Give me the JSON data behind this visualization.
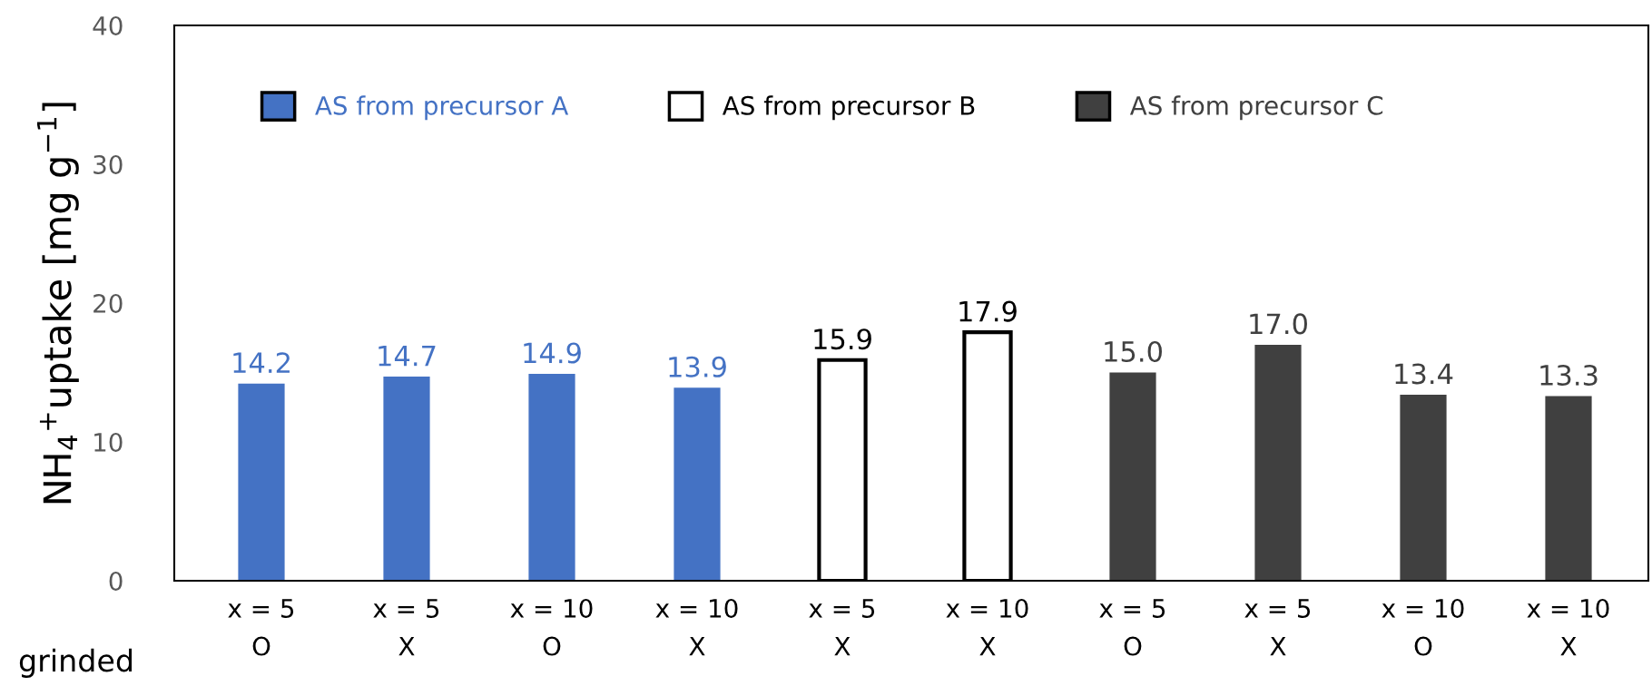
{
  "chart_data": {
    "type": "bar",
    "ylabel": "NH$_{4}$$^{+}$uptake [mg g$^{−1}$]",
    "categories": [
      "x = 5\nO",
      "x = 5\nX",
      "x = 10\nO",
      "x = 10\nX",
      "x = 5\nX",
      "x = 10\nX",
      "x = 5\nO",
      "x = 5\nX",
      "x = 10\nO",
      "x = 10\nX"
    ],
    "series": [
      {
        "name": "AS from precursor A",
        "color": "#4472c4",
        "values": [
          14.2,
          14.7,
          14.9,
          13.9,
          null,
          null,
          null,
          null,
          null,
          null
        ]
      },
      {
        "name": "AS from precursor B",
        "color": "#ffffff",
        "values": [
          null,
          null,
          null,
          null,
          15.9,
          17.9,
          null,
          null,
          null,
          null
        ]
      },
      {
        "name": "AS from precursor C",
        "color": "#404040",
        "values": [
          null,
          null,
          null,
          null,
          null,
          null,
          15.0,
          17.0,
          13.4,
          13.3
        ],
        "value_labels": [
          null,
          null,
          null,
          null,
          null,
          null,
          "15.0",
          "17.0",
          "13.4",
          "13.3"
        ]
      }
    ],
    "ylim": [
      0,
      40
    ],
    "yticks": [
      0,
      10,
      20,
      30,
      40
    ],
    "data_labels": true,
    "legend": "top",
    "grid": false,
    "annotations": [
      "grinded"
    ]
  }
}
